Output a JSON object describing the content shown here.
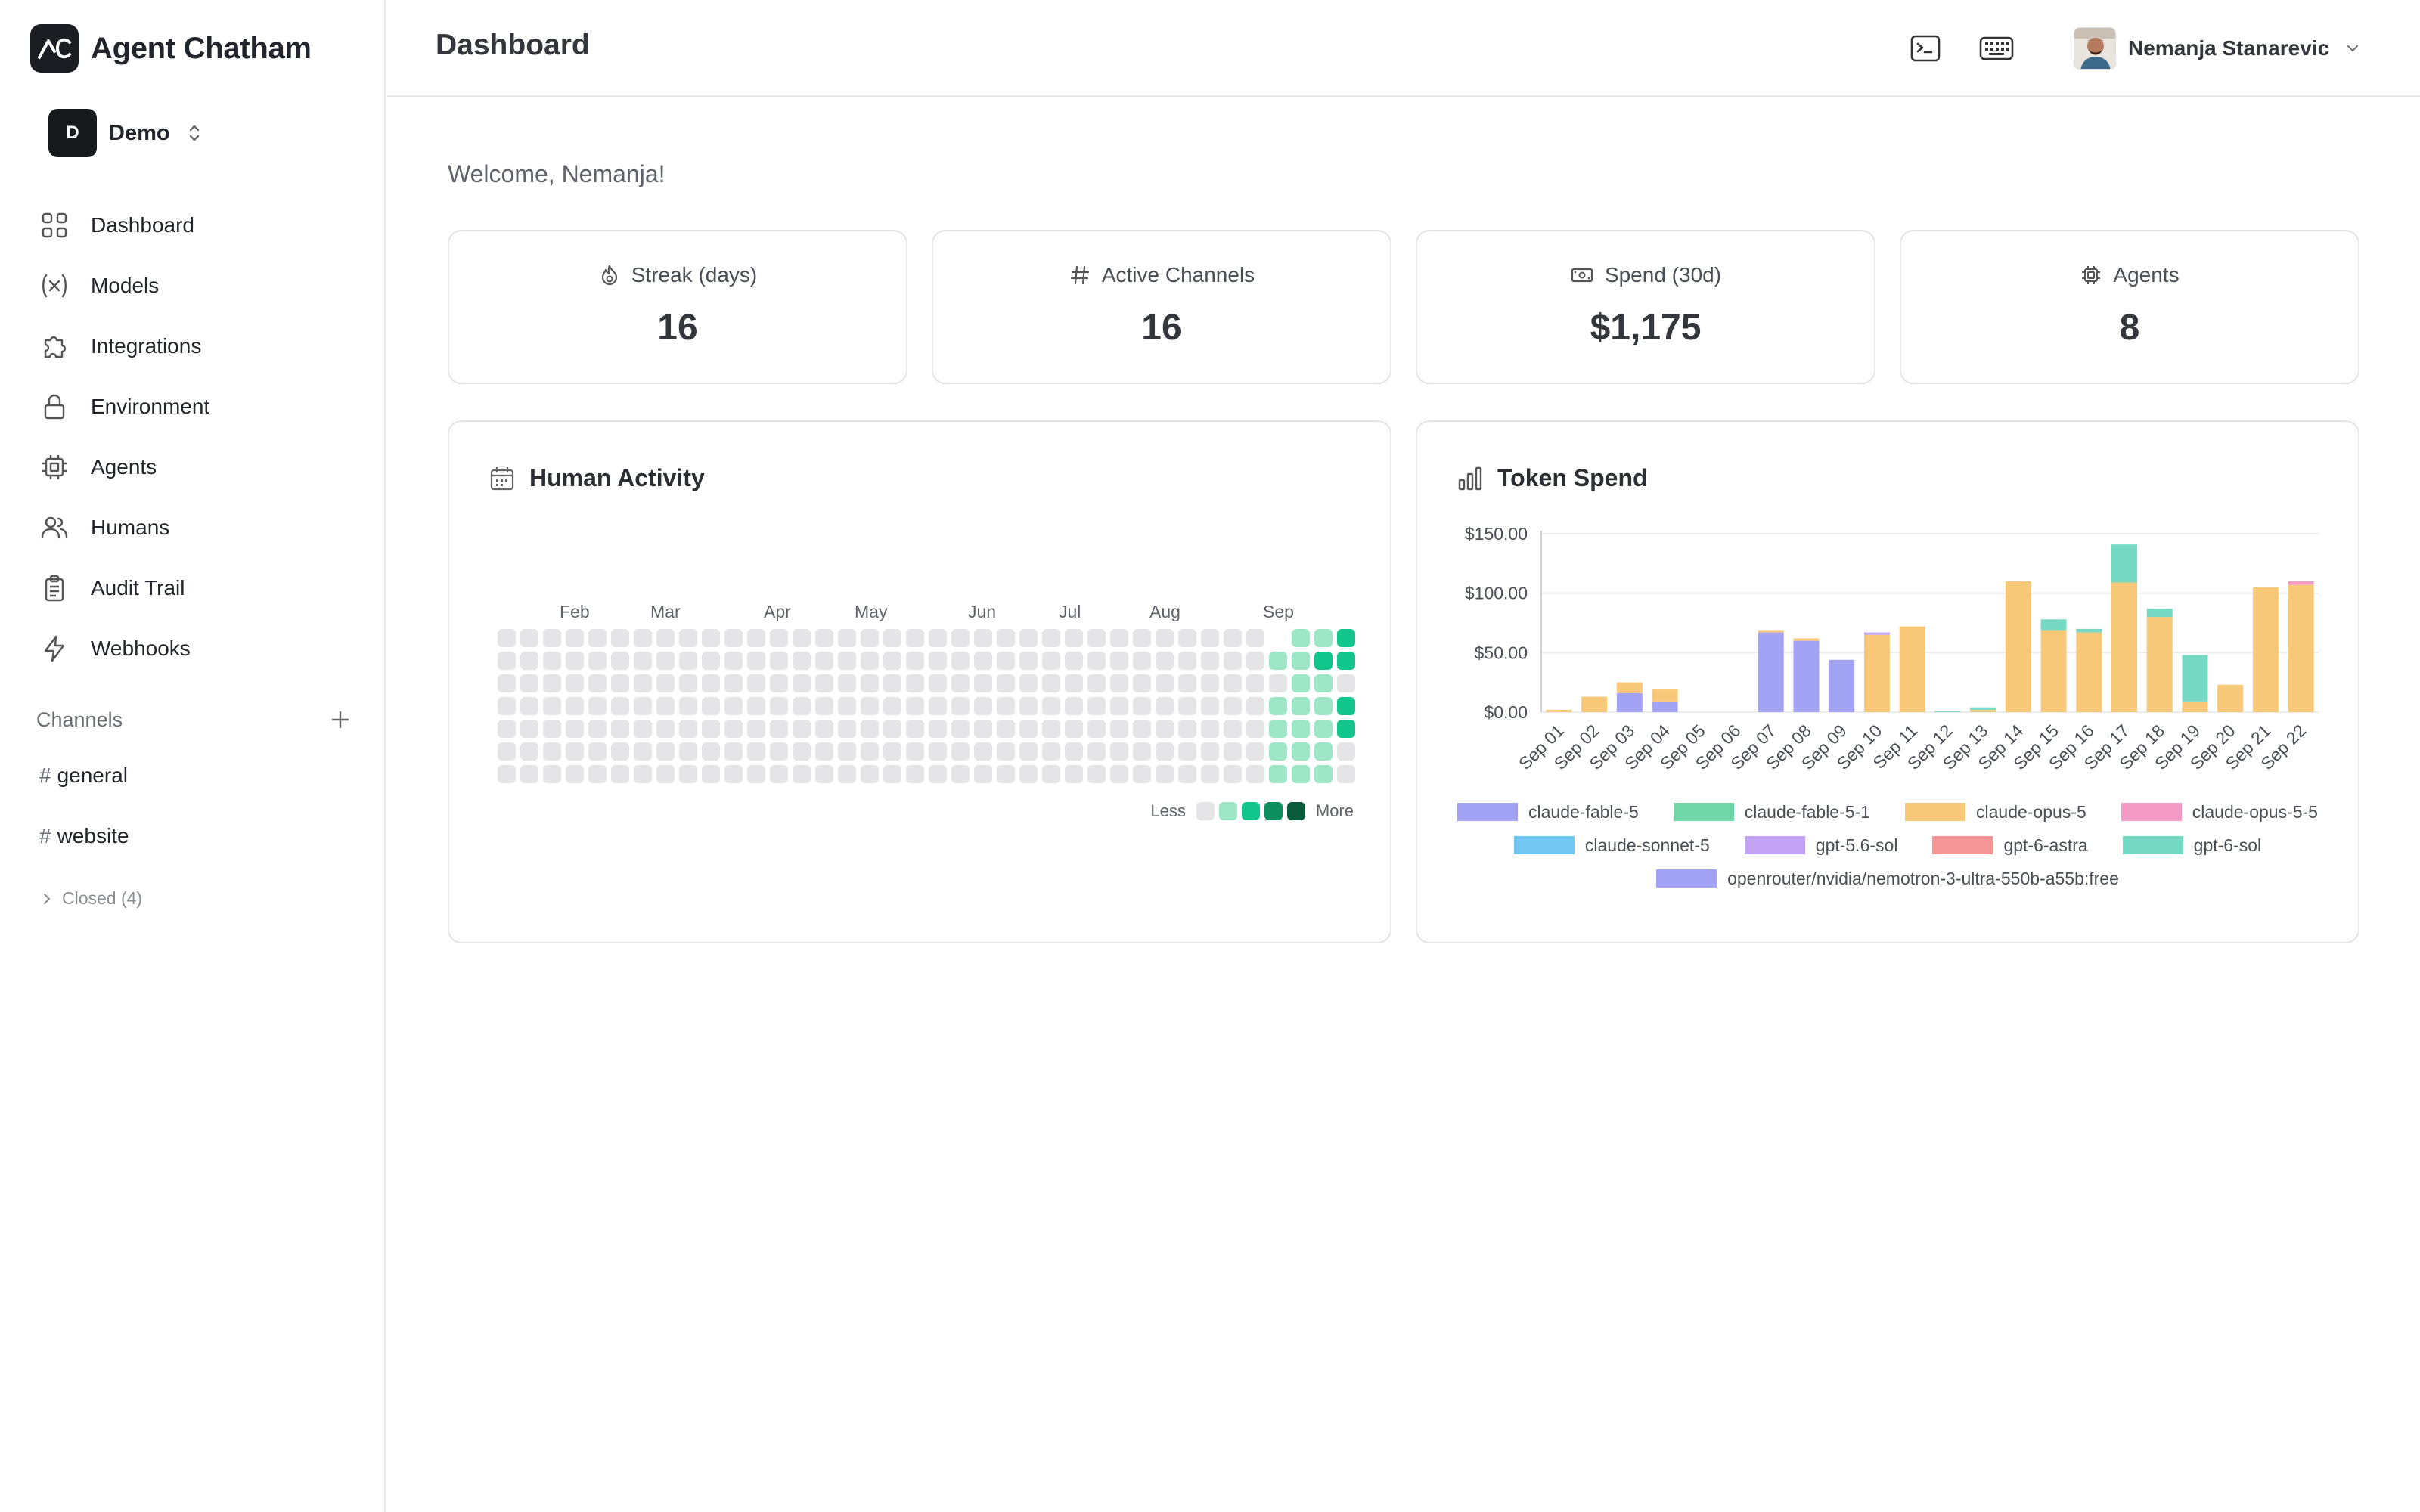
{
  "app": {
    "name": "Agent Chatham"
  },
  "workspace": {
    "badge": "D",
    "name": "Demo"
  },
  "nav": [
    {
      "label": "Dashboard",
      "icon": "grid-icon"
    },
    {
      "label": "Models",
      "icon": "variable-icon"
    },
    {
      "label": "Integrations",
      "icon": "puzzle-icon"
    },
    {
      "label": "Environment",
      "icon": "lock-icon"
    },
    {
      "label": "Agents",
      "icon": "cpu-icon"
    },
    {
      "label": "Humans",
      "icon": "users-icon"
    },
    {
      "label": "Audit Trail",
      "icon": "clipboard-icon"
    },
    {
      "label": "Webhooks",
      "icon": "zap-icon"
    }
  ],
  "channels": {
    "title": "Channels",
    "items": [
      {
        "hash": "#",
        "name": "general"
      },
      {
        "hash": "#",
        "name": "website"
      }
    ],
    "closed_label": "Closed (4)"
  },
  "header": {
    "title": "Dashboard",
    "user_name": "Nemanja Stanarevic"
  },
  "welcome": "Welcome, Nemanja!",
  "stats": [
    {
      "label": "Streak (days)",
      "value": "16",
      "icon": "flame-icon"
    },
    {
      "label": "Active Channels",
      "value": "16",
      "icon": "hash-icon"
    },
    {
      "label": "Spend (30d)",
      "value": "$1,175",
      "icon": "banknote-icon"
    },
    {
      "label": "Agents",
      "value": "8",
      "icon": "cpu-icon"
    }
  ],
  "activity": {
    "title": "Human Activity",
    "months": [
      "Feb",
      "Mar",
      "Apr",
      "May",
      "Jun",
      "Jul",
      "Aug",
      "Sep"
    ],
    "legend_less": "Less",
    "legend_more": "More",
    "colors": [
      "#e5e5e7",
      "#9ee7c6",
      "#12c58a",
      "#0b8f5f",
      "#0a5c3d"
    ],
    "recent_levels": [
      [
        null,
        1,
        0,
        1,
        1,
        1,
        1
      ],
      [
        1,
        1,
        1,
        1,
        1,
        1,
        1
      ],
      [
        1,
        2,
        1,
        1,
        1,
        1,
        1
      ],
      [
        2,
        2,
        0,
        2,
        2,
        0,
        0
      ]
    ]
  },
  "token_spend": {
    "title": "Token Spend",
    "chart_data": {
      "type": "bar",
      "stacked": true,
      "title": "Token Spend",
      "ylim": [
        0,
        150
      ],
      "yticks": [
        "$0.00",
        "$50.00",
        "$100.00",
        "$150.00"
      ],
      "categories": [
        "Sep 01",
        "Sep 02",
        "Sep 03",
        "Sep 04",
        "Sep 05",
        "Sep 06",
        "Sep 07",
        "Sep 08",
        "Sep 09",
        "Sep 10",
        "Sep 11",
        "Sep 12",
        "Sep 13",
        "Sep 14",
        "Sep 15",
        "Sep 16",
        "Sep 17",
        "Sep 18",
        "Sep 19",
        "Sep 20",
        "Sep 21",
        "Sep 22"
      ],
      "series": [
        {
          "name": "claude-fable-5",
          "color": "#a3a3f5",
          "values": [
            0,
            0,
            16,
            9,
            0,
            0,
            67,
            60,
            44,
            0,
            0,
            0,
            0,
            0,
            0,
            0,
            0,
            0,
            0,
            0,
            0,
            0
          ]
        },
        {
          "name": "claude-fable-5-1",
          "color": "#6fd6a8",
          "values": [
            0,
            0,
            0,
            0,
            0,
            0,
            0,
            0,
            0,
            0,
            0,
            0,
            0,
            0,
            0,
            0,
            0,
            0,
            0,
            0,
            0,
            0
          ]
        },
        {
          "name": "claude-opus-5",
          "color": "#f6c877",
          "values": [
            2,
            13,
            9,
            10,
            0,
            0,
            2,
            2,
            0,
            65,
            72,
            0,
            2,
            110,
            69,
            67,
            109,
            80,
            9,
            23,
            105,
            107
          ]
        },
        {
          "name": "claude-opus-5-5",
          "color": "#f39ac5",
          "values": [
            0,
            0,
            0,
            0,
            0,
            0,
            0,
            0,
            0,
            0,
            0,
            0,
            0,
            0,
            0,
            0,
            0,
            0,
            0,
            0,
            0,
            3
          ]
        },
        {
          "name": "claude-sonnet-5",
          "color": "#72c7f2",
          "values": [
            0,
            0,
            0,
            0,
            0,
            0,
            0,
            0,
            0,
            0,
            0,
            0,
            0,
            0,
            0,
            0,
            0,
            0,
            0,
            0,
            0,
            0
          ]
        },
        {
          "name": "gpt-5.6-sol",
          "color": "#c2a3f5",
          "values": [
            0,
            0,
            0,
            0,
            0,
            0,
            0,
            0,
            0,
            2,
            0,
            0,
            0,
            0,
            0,
            0,
            0,
            0,
            0,
            0,
            0,
            0
          ]
        },
        {
          "name": "gpt-6-astra",
          "color": "#f59595",
          "values": [
            0,
            0,
            0,
            0,
            0,
            0,
            0,
            0,
            0,
            0,
            0,
            0,
            0,
            0,
            0,
            0,
            0,
            0,
            0,
            0,
            0,
            0
          ]
        },
        {
          "name": "gpt-6-sol",
          "color": "#76d9c4",
          "values": [
            0,
            0,
            0,
            0,
            0,
            0,
            0,
            0,
            0,
            0,
            0,
            1,
            2,
            0,
            9,
            3,
            32,
            7,
            39,
            0,
            0,
            0
          ]
        },
        {
          "name": "openrouter/nvidia/nemotron-3-ultra-550b-a55b:free",
          "color": "#a3a3f5",
          "values": [
            0,
            0,
            0,
            0,
            0,
            0,
            0,
            0,
            0,
            0,
            0,
            0,
            0,
            0,
            0,
            0,
            0,
            0,
            0,
            0,
            0,
            0
          ]
        }
      ],
      "grid": true,
      "legend": "bottom"
    }
  }
}
